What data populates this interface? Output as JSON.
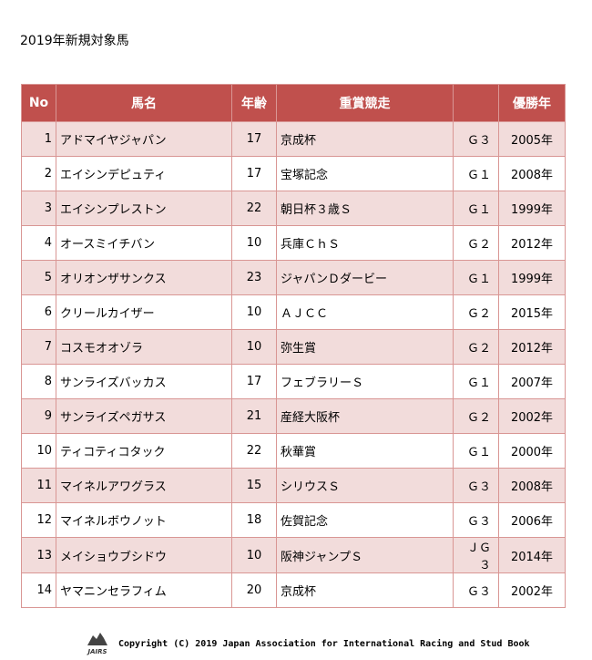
{
  "header": {
    "title": "2019年新規対象馬"
  },
  "table": {
    "headers": [
      "No",
      "馬名",
      "年齢",
      "重賞競走",
      "優勝年"
    ],
    "rows": [
      [
        1,
        "アドマイヤジャパン",
        17,
        "京成杯",
        "Ｇ３",
        "2005年"
      ],
      [
        2,
        "エイシンデピュティ",
        17,
        "宝塚記念",
        "Ｇ１",
        "2008年"
      ],
      [
        3,
        "エイシンプレストン",
        22,
        "朝日杯３歳Ｓ",
        "Ｇ１",
        "1999年"
      ],
      [
        4,
        "オースミイチバン",
        10,
        "兵庫ＣｈＳ",
        "Ｇ２",
        "2012年"
      ],
      [
        5,
        "オリオンザサンクス",
        23,
        "ジャパンＤダービー",
        "Ｇ１",
        "1999年"
      ],
      [
        6,
        "クリールカイザー",
        10,
        "ＡＪＣＣ",
        "Ｇ２",
        "2015年"
      ],
      [
        7,
        "コスモオオゾラ",
        10,
        "弥生賞",
        "Ｇ２",
        "2012年"
      ],
      [
        8,
        "サンライズバッカス",
        17,
        "フェブラリーＳ",
        "Ｇ１",
        "2007年"
      ],
      [
        9,
        "サンライズペガサス",
        21,
        "産経大阪杯",
        "Ｇ２",
        "2002年"
      ],
      [
        10,
        "ティコティコタック",
        22,
        "秋華賞",
        "Ｇ１",
        "2000年"
      ],
      [
        11,
        "マイネルアワグラス",
        15,
        "シリウスＳ",
        "Ｇ３",
        "2008年"
      ],
      [
        12,
        "マイネルボウノット",
        18,
        "佐賀記念",
        "Ｇ３",
        "2006年"
      ],
      [
        13,
        "メイショウブシドウ",
        10,
        "阪神ジャンプＳ",
        "ＪＧ３",
        "2014年"
      ],
      [
        14,
        "ヤマニンセラフィム",
        20,
        "京成杯",
        "Ｇ３",
        "2002年"
      ]
    ]
  },
  "footer": {
    "logo": "JAIRS",
    "copyright": "Copyright (C) 2019 Japan Association for International Racing and Stud Book"
  }
}
